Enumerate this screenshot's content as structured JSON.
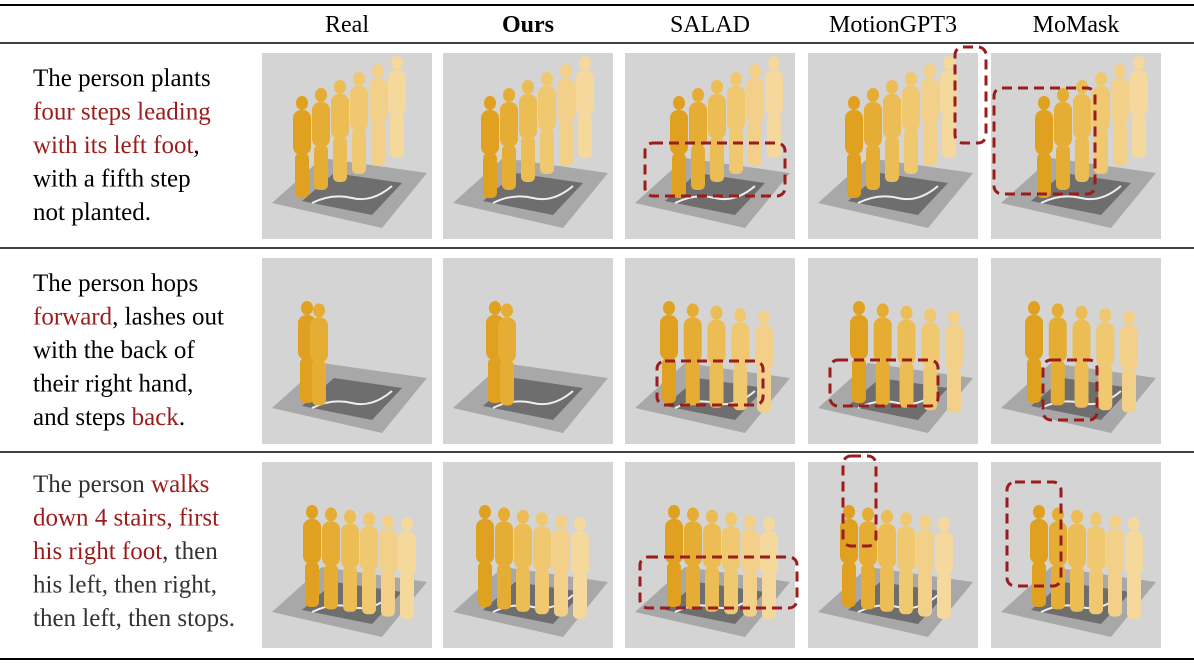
{
  "header": {
    "columns": [
      {
        "text": "Real",
        "bold": false
      },
      {
        "text": "Ours",
        "bold": true
      },
      {
        "text": "SALAD",
        "bold": false
      },
      {
        "text": "MotionGPT3",
        "bold": false
      },
      {
        "text": "MoMask",
        "bold": false
      }
    ]
  },
  "rows": [
    {
      "lines": [
        [
          {
            "text": "The person plants",
            "red": false
          }
        ],
        [
          {
            "text": "four steps leading",
            "red": true
          }
        ],
        [
          {
            "text": "with its left foot",
            "red": true
          },
          {
            "text": ",",
            "red": false
          }
        ],
        [
          {
            "text": "with a fifth step",
            "red": false
          }
        ],
        [
          {
            "text": "not planted.",
            "red": false
          }
        ]
      ]
    },
    {
      "lines": [
        [
          {
            "text": "The person hops",
            "red": false
          }
        ],
        [
          {
            "text": "forward",
            "red": true
          },
          {
            "text": ", lashes out",
            "red": false
          }
        ],
        [
          {
            "text": "with the back of",
            "red": false
          }
        ],
        [
          {
            "text": "their right hand,",
            "red": false
          }
        ],
        [
          {
            "text": "and steps ",
            "red": false
          },
          {
            "text": "back",
            "red": true
          },
          {
            "text": ".",
            "red": false
          }
        ]
      ]
    },
    {
      "lines": [
        [
          {
            "text": "The person ",
            "red": false
          },
          {
            "text": "walks",
            "red": true
          }
        ],
        [
          {
            "text": "down 4 stairs, first",
            "red": true
          }
        ],
        [
          {
            "text": "his right foot",
            "red": true
          },
          {
            "text": ", then",
            "red": false
          }
        ],
        [
          {
            "text": "his left, then right,",
            "red": false
          }
        ],
        [
          {
            "text": "then left, then stops.",
            "red": false
          }
        ]
      ]
    }
  ]
}
